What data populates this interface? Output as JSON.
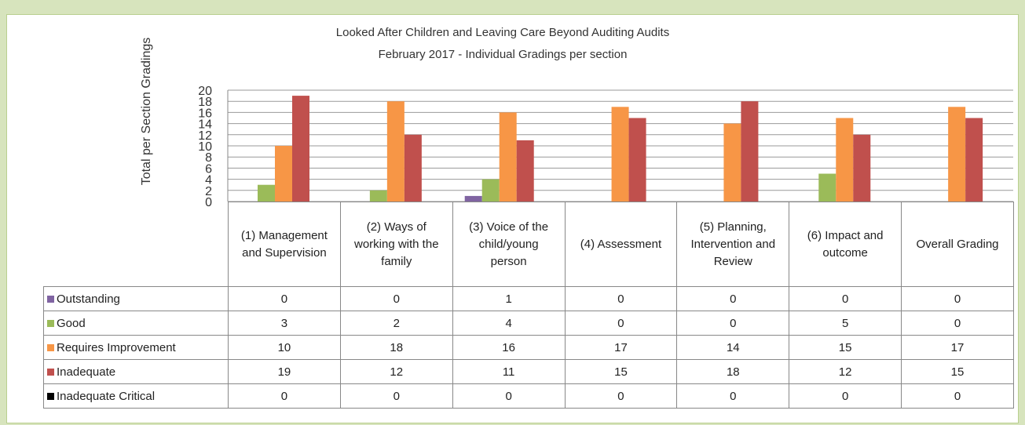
{
  "chart_data": {
    "type": "bar",
    "title": "Looked After Children and Leaving Care Beyond Auditing Audits",
    "subtitle": "February 2017 - Individual Gradings per section",
    "y_label": "Total per Section Gradings",
    "categories": [
      "(1) Management and Supervision",
      "(2) Ways of working with the family",
      "(3) Voice of the child/young person",
      "(4) Assessment",
      "(5) Planning, Intervention and Review",
      "(6) Impact and outcome",
      "Overall Grading"
    ],
    "series": [
      {
        "name": "Outstanding",
        "color": "#8064a2",
        "values": [
          0,
          0,
          1,
          0,
          0,
          0,
          0
        ]
      },
      {
        "name": "Good",
        "color": "#9bbb59",
        "values": [
          3,
          2,
          4,
          0,
          0,
          5,
          0
        ]
      },
      {
        "name": "Requires Improvement",
        "color": "#f79646",
        "values": [
          10,
          18,
          16,
          17,
          14,
          15,
          17
        ]
      },
      {
        "name": "Inadequate",
        "color": "#c0504d",
        "values": [
          19,
          12,
          11,
          15,
          18,
          12,
          15
        ]
      },
      {
        "name": "Inadequate Critical",
        "color": "#000000",
        "values": [
          0,
          0,
          0,
          0,
          0,
          0,
          0
        ]
      }
    ],
    "ylim": [
      0,
      20
    ],
    "yticks": [
      0,
      2,
      4,
      6,
      8,
      10,
      12,
      14,
      16,
      18,
      20
    ],
    "grid": true
  }
}
